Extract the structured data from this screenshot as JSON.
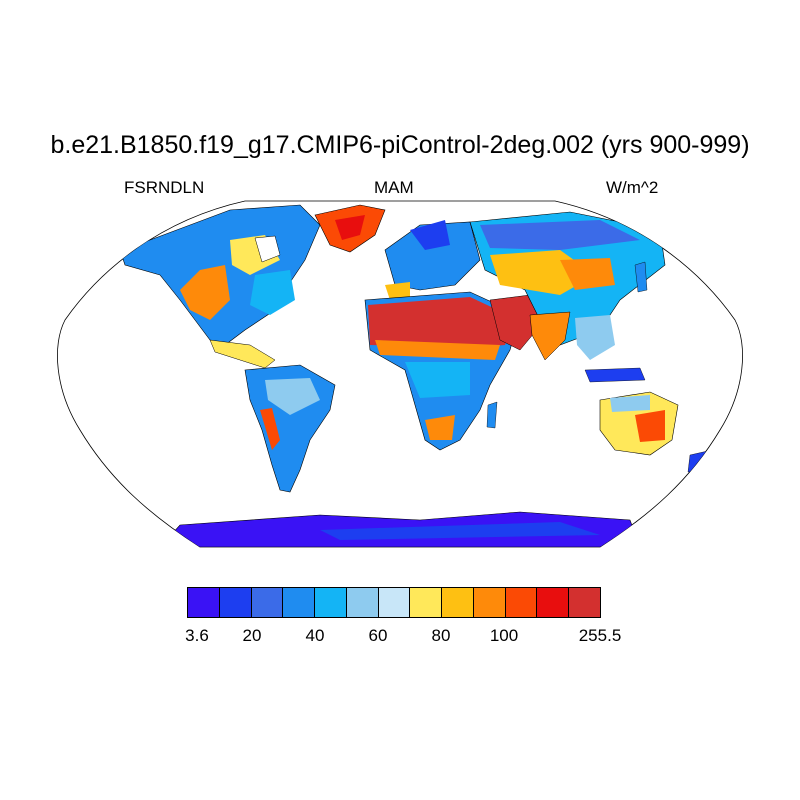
{
  "title": "b.e21.B1850.f19_g17.CMIP6-piControl-2deg.002 (yrs 900-999)",
  "left_string": "FSRNDLN",
  "center_string": "MAM",
  "right_string": "W/m^2",
  "colorbar": {
    "colors": [
      "#3a12f5",
      "#1d3ef0",
      "#3b6be8",
      "#1f8cf0",
      "#14b4f5",
      "#8ecbef",
      "#c8e6f8",
      "#ffe85a",
      "#fec012",
      "#fe8a0a",
      "#fb4a05",
      "#e80e0e",
      "#d3302f"
    ],
    "labels": [
      "3.6",
      "20",
      "40",
      "60",
      "80",
      "100",
      "255.5"
    ]
  },
  "map": {
    "projection": "Robinson",
    "ocean_color": "#ffffff",
    "regions": [
      {
        "name": "North Africa / Sahara",
        "level": 12
      },
      {
        "name": "Arabian Peninsula",
        "level": 12
      },
      {
        "name": "Greenland",
        "level": 10
      },
      {
        "name": "Antarctica",
        "level": 0
      },
      {
        "name": "Tropical Africa",
        "level": 4
      },
      {
        "name": "South America",
        "level": 4
      },
      {
        "name": "Australia interior",
        "level": 8
      }
    ]
  }
}
